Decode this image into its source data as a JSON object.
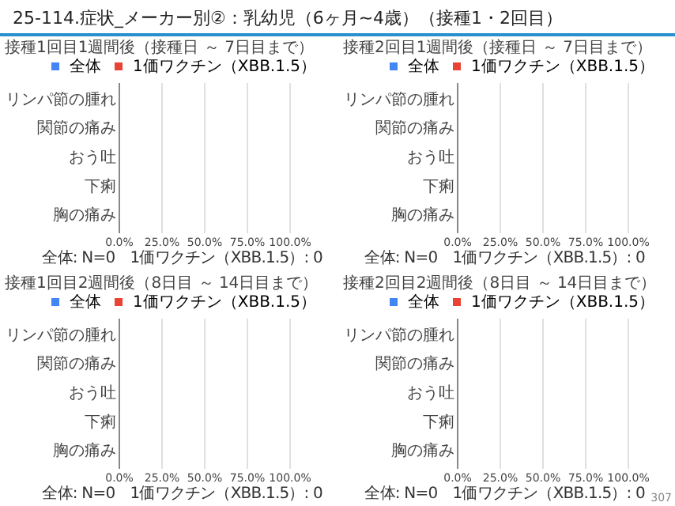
{
  "chart_data": [
    {
      "type": "bar",
      "orientation": "horizontal",
      "title": "25-114.症状_メーカー別②：乳幼児（6ヶ月~4歳）（接種1・2回目）",
      "subtitle": "接種1回目1週間後（接種日 ～ 7日目まで）",
      "categories": [
        "リンパ節の腫れ",
        "関節の痛み",
        "おう吐",
        "下痢",
        "胸の痛み"
      ],
      "series": [
        {
          "name": "全体",
          "color": "#4285f4",
          "values": [
            0,
            0,
            0,
            0,
            0
          ]
        },
        {
          "name": "1価ワクチン（XBB.1.5）",
          "color": "#ea4335",
          "values": [
            0,
            0,
            0,
            0,
            0
          ]
        }
      ],
      "xlim": [
        0,
        100
      ],
      "xticks": [
        {
          "value": 0,
          "label": "0.0%"
        },
        {
          "value": 25,
          "label": "25.0%"
        },
        {
          "value": 50,
          "label": "50.0%"
        },
        {
          "value": 75,
          "label": "75.0%"
        },
        {
          "value": 100,
          "label": "100.0%"
        }
      ],
      "grid": "x",
      "legend": "top",
      "annotations": [
        "全体: N=0　1価ワクチン（XBB.1.5）: 0"
      ]
    },
    {
      "type": "bar",
      "orientation": "horizontal",
      "title": "接種2回目1週間後（接種日 ～ 7日目まで）",
      "categories": [
        "リンパ節の腫れ",
        "関節の痛み",
        "おう吐",
        "下痢",
        "胸の痛み"
      ],
      "series": [
        {
          "name": "全体",
          "color": "#4285f4",
          "values": [
            0,
            0,
            0,
            0,
            0
          ]
        },
        {
          "name": "1価ワクチン（XBB.1.5）",
          "color": "#ea4335",
          "values": [
            0,
            0,
            0,
            0,
            0
          ]
        }
      ],
      "xlim": [
        0,
        100
      ],
      "xticks": [
        {
          "value": 0,
          "label": "0.0%"
        },
        {
          "value": 25,
          "label": "25.0%"
        },
        {
          "value": 50,
          "label": "50.0%"
        },
        {
          "value": 75,
          "label": "75.0%"
        },
        {
          "value": 100,
          "label": "100.0%"
        }
      ],
      "grid": "x",
      "legend": "top",
      "annotations": [
        "全体: N=0　1価ワクチン（XBB.1.5）: 0"
      ]
    },
    {
      "type": "bar",
      "orientation": "horizontal",
      "title": "接種1回目2週間後（8日目 ～ 14日目まで）",
      "categories": [
        "リンパ節の腫れ",
        "関節の痛み",
        "おう吐",
        "下痢",
        "胸の痛み"
      ],
      "series": [
        {
          "name": "全体",
          "color": "#4285f4",
          "values": [
            0,
            0,
            0,
            0,
            0
          ]
        },
        {
          "name": "1価ワクチン（XBB.1.5）",
          "color": "#ea4335",
          "values": [
            0,
            0,
            0,
            0,
            0
          ]
        }
      ],
      "xlim": [
        0,
        100
      ],
      "xticks": [
        {
          "value": 0,
          "label": "0.0%"
        },
        {
          "value": 25,
          "label": "25.0%"
        },
        {
          "value": 50,
          "label": "50.0%"
        },
        {
          "value": 75,
          "label": "75.0%"
        },
        {
          "value": 100,
          "label": "100.0%"
        }
      ],
      "grid": "x",
      "legend": "top",
      "annotations": [
        "全体: N=0　1価ワクチン（XBB.1.5）: 0"
      ]
    },
    {
      "type": "bar",
      "orientation": "horizontal",
      "title": "接種2回目2週間後（8日目 ～ 14日目まで）",
      "categories": [
        "リンパ節の腫れ",
        "関節の痛み",
        "おう吐",
        "下痢",
        "胸の痛み"
      ],
      "series": [
        {
          "name": "全体",
          "color": "#4285f4",
          "values": [
            0,
            0,
            0,
            0,
            0
          ]
        },
        {
          "name": "1価ワクチン（XBB.1.5）",
          "color": "#ea4335",
          "values": [
            0,
            0,
            0,
            0,
            0
          ]
        }
      ],
      "xlim": [
        0,
        100
      ],
      "xticks": [
        {
          "value": 0,
          "label": "0.0%"
        },
        {
          "value": 25,
          "label": "25.0%"
        },
        {
          "value": 50,
          "label": "50.0%"
        },
        {
          "value": 75,
          "label": "75.0%"
        },
        {
          "value": 100,
          "label": "100.0%"
        }
      ],
      "grid": "x",
      "legend": "top",
      "annotations": [
        "全体: N=0　1価ワクチン（XBB.1.5）: 0",
        "307"
      ]
    }
  ]
}
